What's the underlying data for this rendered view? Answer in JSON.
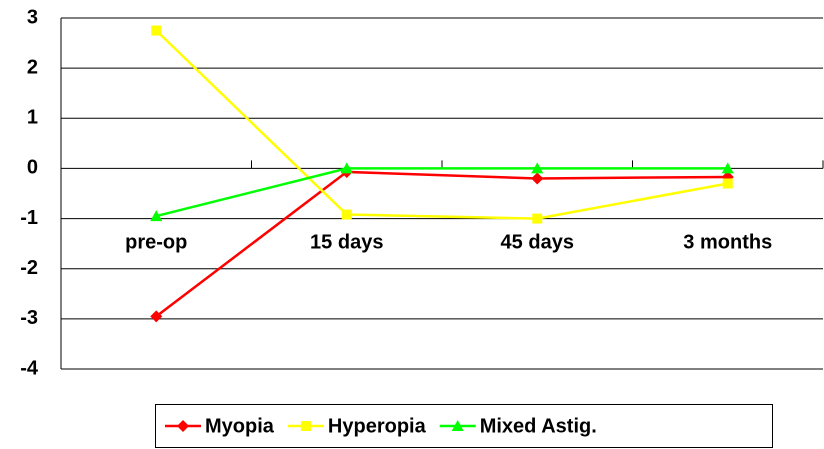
{
  "chart_data": {
    "type": "line",
    "categories": [
      "pre-op",
      "15 days",
      "45 days",
      "3 months"
    ],
    "series": [
      {
        "name": "Myopia",
        "color": "#ff0000",
        "marker": "diamond",
        "values": [
          -2.95,
          -0.07,
          -0.2,
          -0.17
        ]
      },
      {
        "name": "Hyperopia",
        "color": "#ffff00",
        "marker": "square",
        "values": [
          2.75,
          -0.92,
          -1.0,
          -0.3
        ]
      },
      {
        "name": "Mixed Astig.",
        "color": "#00ff00",
        "marker": "triangle",
        "values": [
          -0.95,
          0,
          0,
          0
        ]
      }
    ],
    "ylim": [
      -4,
      3
    ],
    "yticks": [
      -4,
      -3,
      -2,
      -1,
      0,
      1,
      2,
      3
    ],
    "grid": true,
    "legend": "bottom"
  }
}
